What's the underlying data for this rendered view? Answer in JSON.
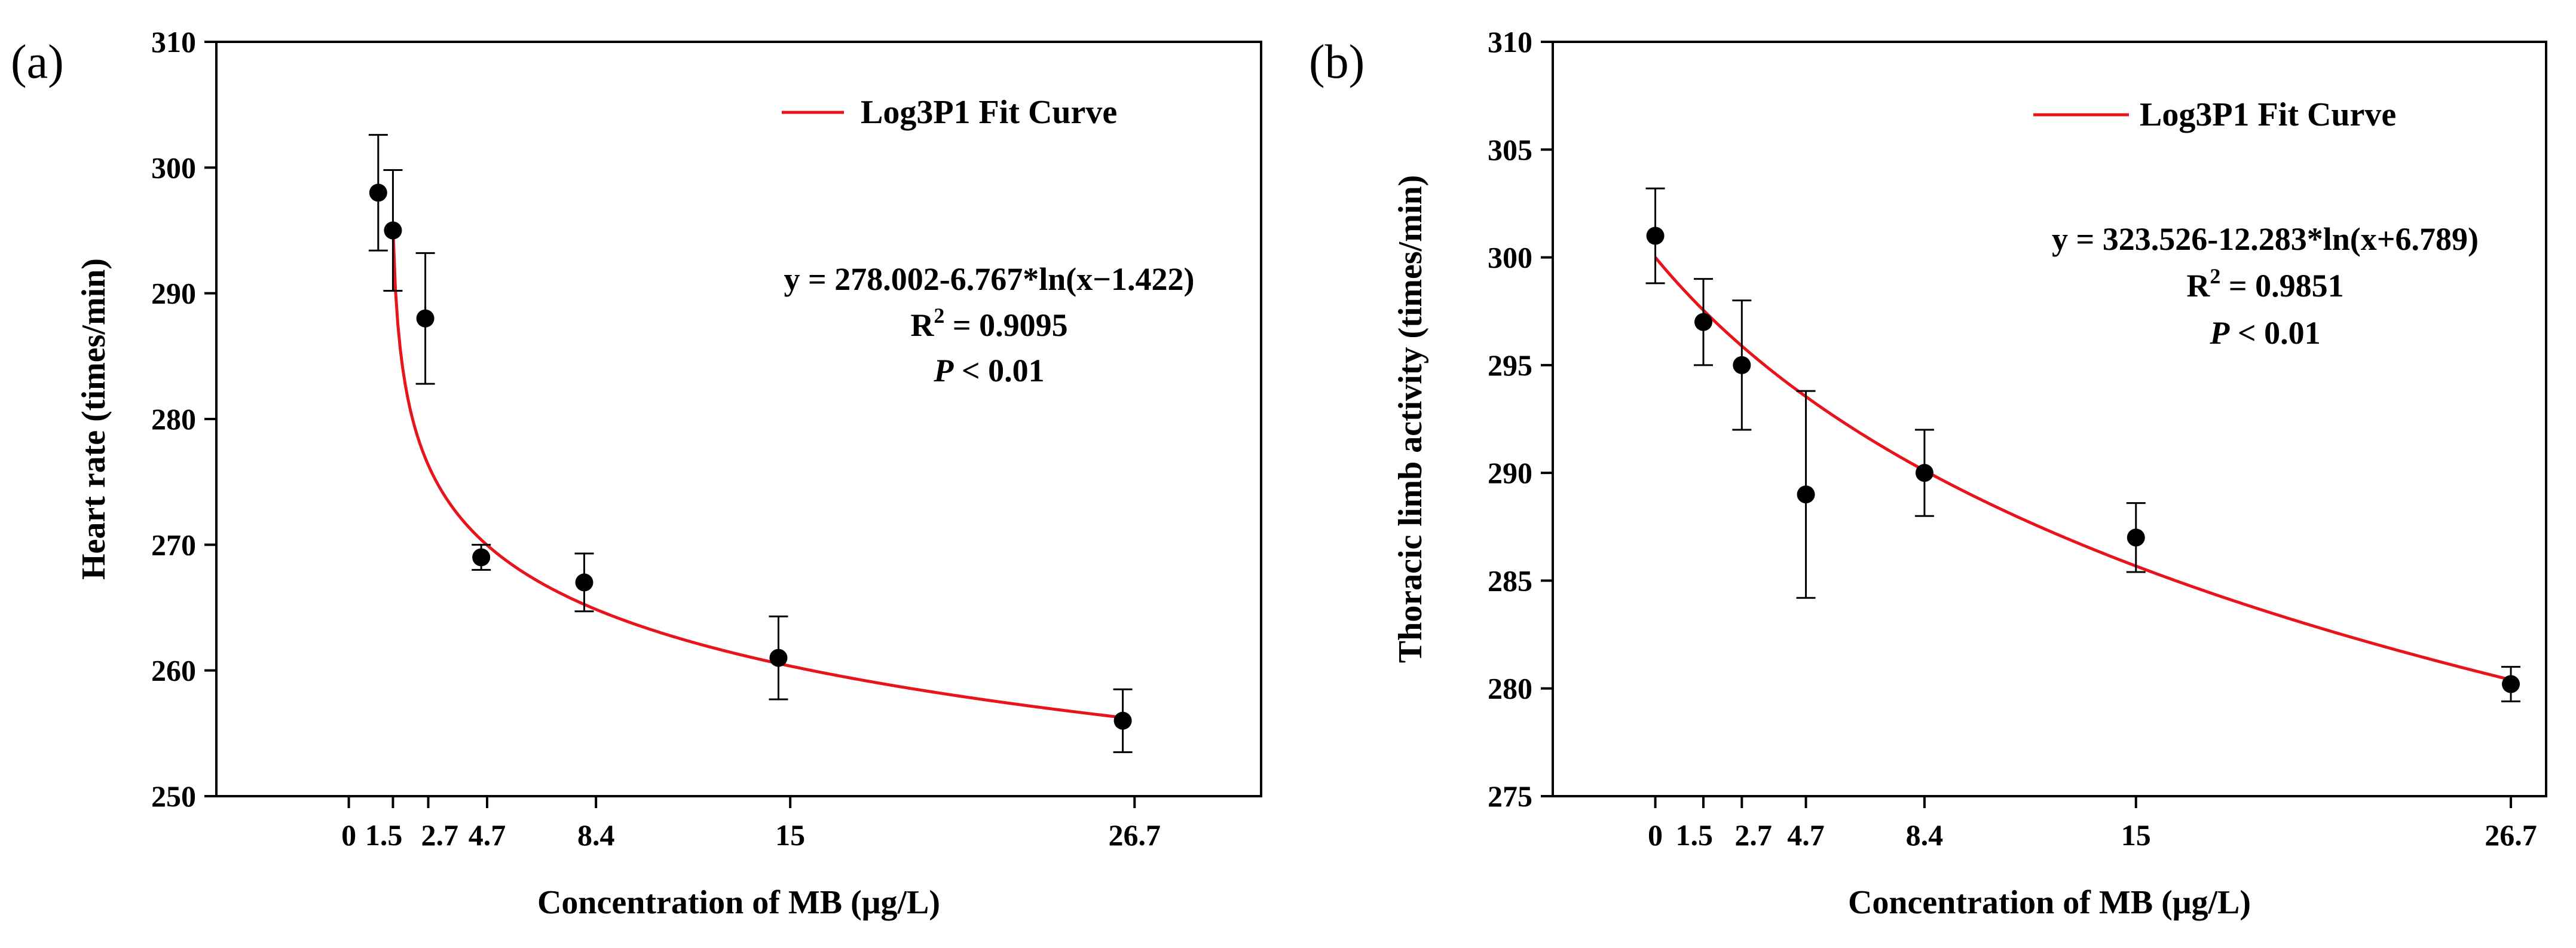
{
  "chart_data": [
    {
      "panel_label": "(a)",
      "type": "scatter",
      "xlabel": "Concentration of MB (μg/L)",
      "ylabel": "Heart rate (times/min)",
      "xlim": [
        -4.5,
        31
      ],
      "ylim": [
        250,
        310
      ],
      "x_ticks": [
        0,
        1.5,
        2.7,
        4.7,
        8.4,
        15,
        26.7
      ],
      "x_tick_labels": [
        "0",
        "1.5",
        "2.7",
        "4.7",
        "8.4",
        "15",
        "26.7"
      ],
      "y_ticks": [
        250,
        260,
        270,
        280,
        290,
        300,
        310
      ],
      "y_tick_labels": [
        "250",
        "260",
        "270",
        "280",
        "290",
        "300",
        "310"
      ],
      "points": [
        {
          "x": 1.0,
          "y": 298,
          "err": 4.6
        },
        {
          "x": 1.5,
          "y": 295,
          "err": 4.8
        },
        {
          "x": 2.6,
          "y": 288,
          "err": 5.2
        },
        {
          "x": 4.5,
          "y": 269,
          "err": 1.0
        },
        {
          "x": 8.0,
          "y": 267,
          "err": 2.3
        },
        {
          "x": 14.6,
          "y": 261,
          "err": 3.3
        },
        {
          "x": 26.3,
          "y": 256,
          "err": 2.5
        }
      ],
      "fit": {
        "type": "log3p1",
        "a": 278.002,
        "b": -6.767,
        "c": -1.422,
        "x_start": 1.5,
        "x_end": 26.3,
        "color": "#e8141b"
      },
      "legend_label": "Log3P1 Fit Curve",
      "equation_pre": "y = 278.002-6.767*ln(x−1.422)",
      "r2_label": "R",
      "r2_value": " = 0.9095",
      "p_italic": "P",
      "p_value": " < 0.01",
      "point_color": "#000000"
    },
    {
      "panel_label": "(b)",
      "type": "scatter",
      "xlabel": "Concentration of MB (μg/L)",
      "ylabel": "Thoracic limb activity (times/min)",
      "xlim": [
        -3.2,
        27.8
      ],
      "ylim": [
        275,
        310
      ],
      "x_ticks": [
        0,
        1.5,
        2.7,
        4.7,
        8.4,
        15,
        26.7
      ],
      "x_tick_labels": [
        "0",
        "1.5",
        "2.7",
        "4.7",
        "8.4",
        "15",
        "26.7"
      ],
      "y_ticks": [
        275,
        280,
        285,
        290,
        295,
        300,
        305,
        310
      ],
      "y_tick_labels": [
        "275",
        "280",
        "285",
        "290",
        "295",
        "300",
        "305",
        "310"
      ],
      "points": [
        {
          "x": 0,
          "y": 301,
          "err": 2.2
        },
        {
          "x": 1.5,
          "y": 297,
          "err": 2.0
        },
        {
          "x": 2.7,
          "y": 295,
          "err": 3.0
        },
        {
          "x": 4.7,
          "y": 289,
          "err": 4.8
        },
        {
          "x": 8.4,
          "y": 290,
          "err": 2.0
        },
        {
          "x": 15,
          "y": 287,
          "err": 1.6
        },
        {
          "x": 26.7,
          "y": 280.2,
          "err": 0.8
        }
      ],
      "fit": {
        "type": "log3p1",
        "a": 323.526,
        "b": -12.283,
        "c": 6.789,
        "x_start": 0,
        "x_end": 26.7,
        "color": "#e8141b"
      },
      "legend_label": "Log3P1 Fit Curve",
      "equation_pre": "y = 323.526-12.283*ln(x+6.789)",
      "r2_label": "R",
      "r2_value": " = 0.9851",
      "p_italic": "P",
      "p_value": " < 0.01",
      "point_color": "#000000"
    }
  ]
}
